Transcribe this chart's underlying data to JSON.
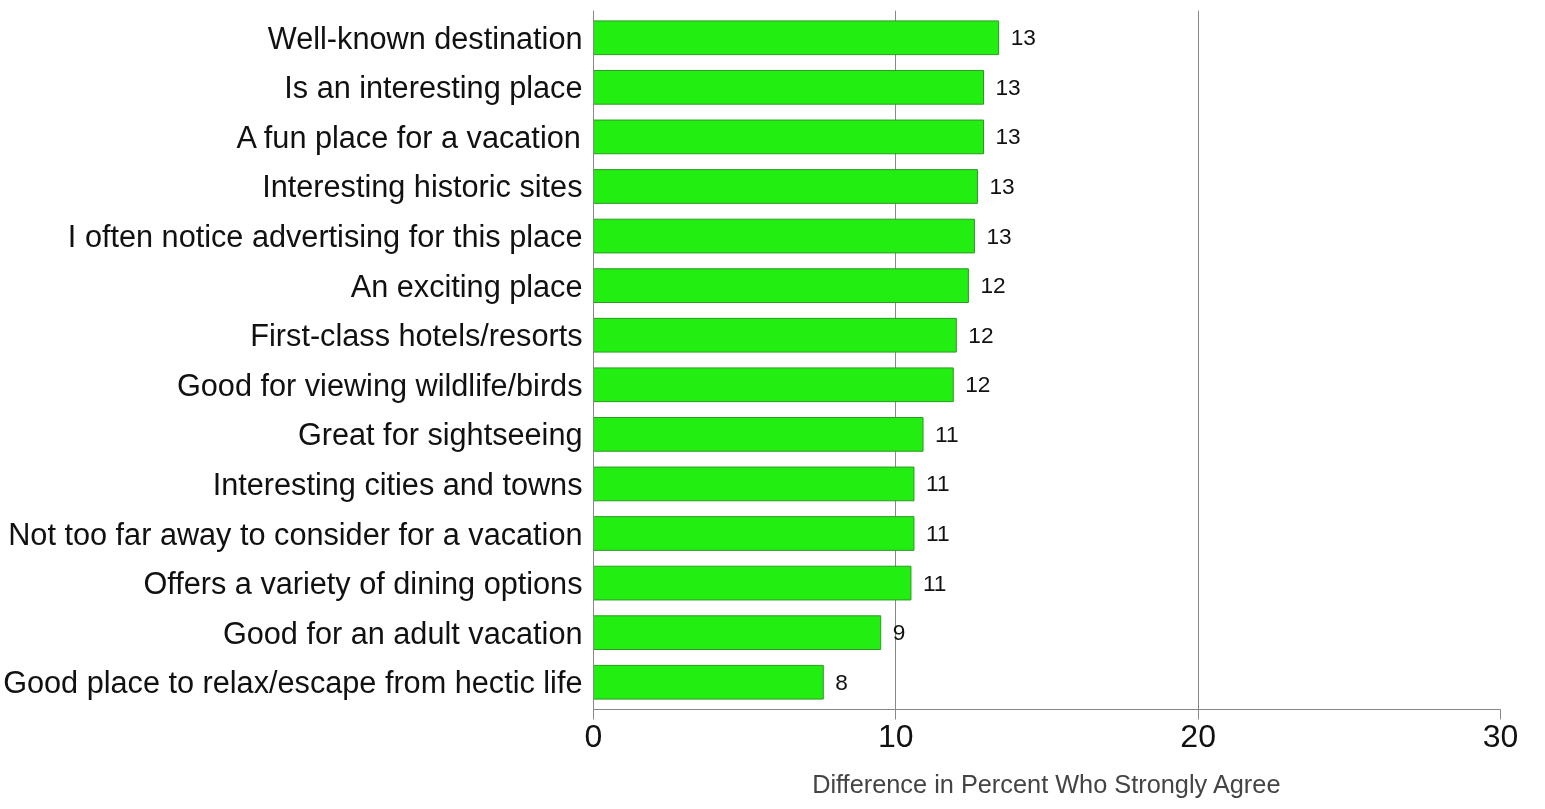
{
  "chart_data": {
    "type": "bar",
    "orientation": "horizontal",
    "xlabel": "Difference in Percent Who Strongly Agree",
    "categories": [
      "Well-known destination",
      "Is an interesting place",
      "A fun place for a vacation",
      "Interesting historic sites",
      "I often notice advertising for this place",
      "An exciting place",
      "First-class hotels/resorts",
      "Good for viewing wildlife/birds",
      "Great for sightseeing",
      "Interesting cities and towns",
      "Not too far away to consider for a vacation",
      "Offers a variety of dining options",
      "Good for an adult vacation",
      "Good place to relax/escape from hectic life"
    ],
    "values": [
      13.4,
      12.9,
      12.9,
      12.7,
      12.6,
      12.4,
      12.0,
      11.9,
      10.9,
      10.6,
      10.6,
      10.5,
      9.5,
      7.6
    ],
    "value_labels": [
      "13",
      "13",
      "13",
      "13",
      "13",
      "12",
      "12",
      "12",
      "11",
      "11",
      "11",
      "11",
      "9",
      "8"
    ],
    "color": "#22ee11",
    "xlim": [
      0,
      30
    ],
    "xticks": [
      0,
      10,
      20,
      30
    ],
    "grid": "x"
  }
}
